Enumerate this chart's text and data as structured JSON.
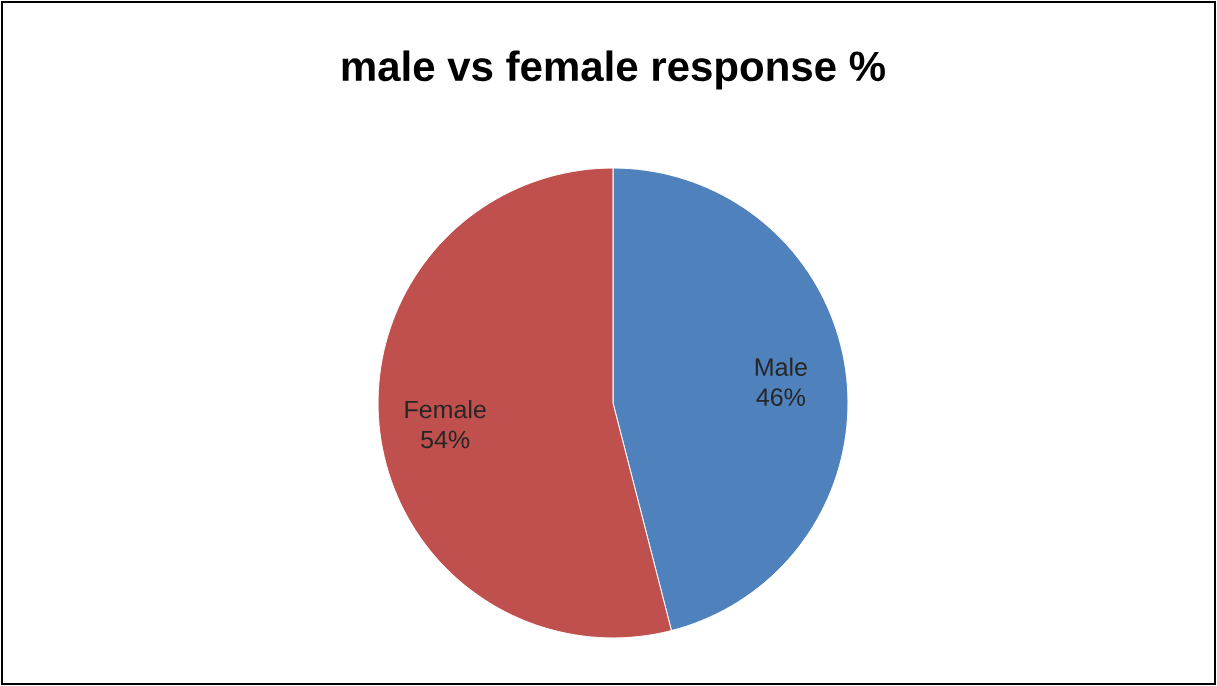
{
  "chart_data": {
    "type": "pie",
    "title": "male vs female response %",
    "categories": [
      "Male",
      "Female"
    ],
    "values": [
      46,
      54
    ],
    "value_labels": [
      "46%",
      "54%"
    ],
    "colors": [
      "#4f81bd",
      "#c0504d"
    ]
  }
}
